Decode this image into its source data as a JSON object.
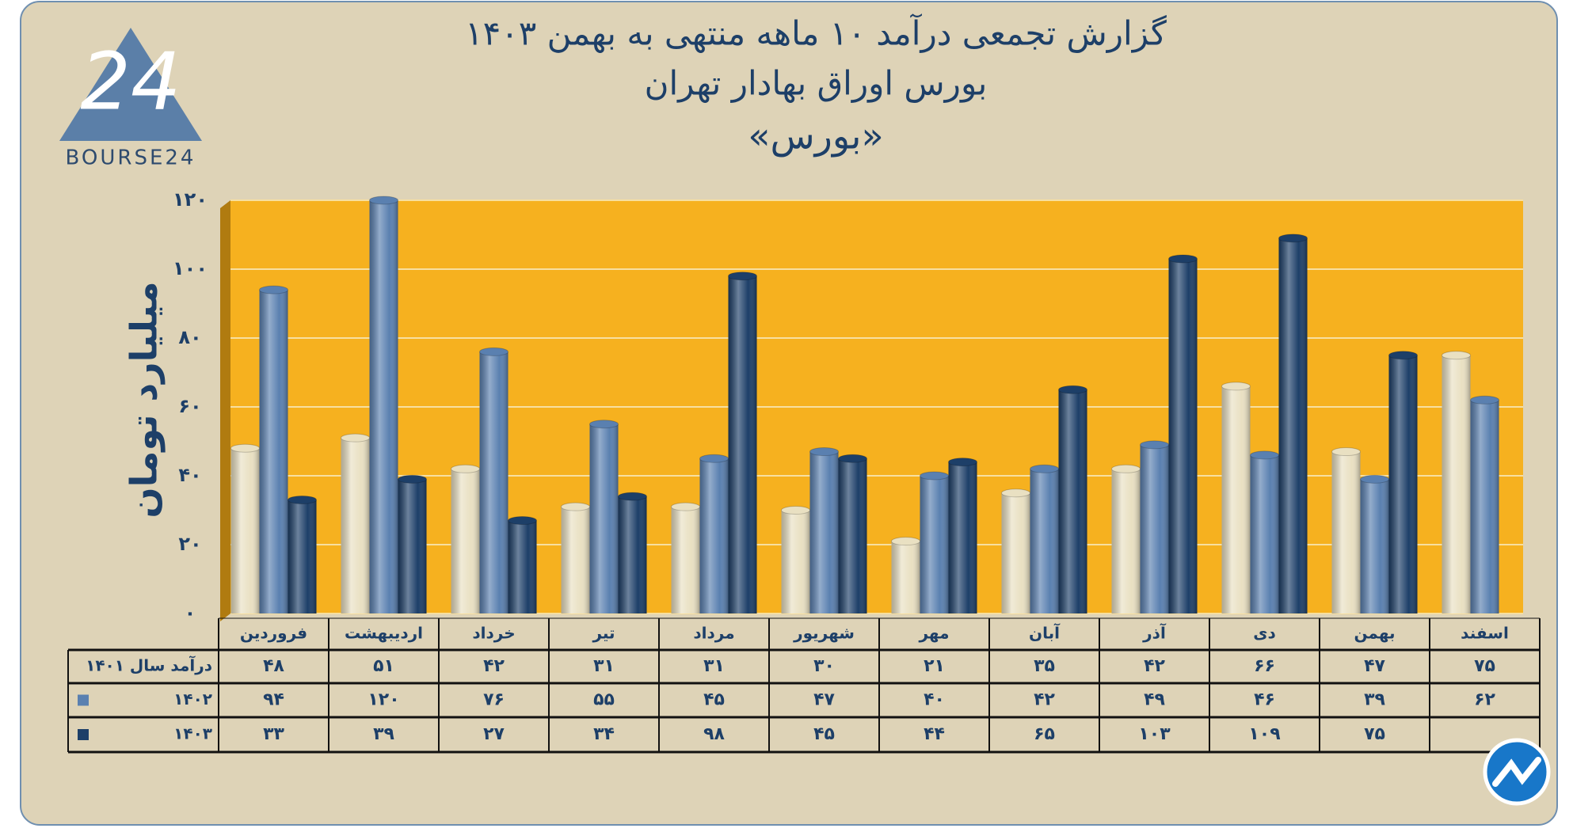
{
  "chart_data": {
    "type": "bar",
    "title": "گزارش تجمعی درآمد ۱۰ ماهه منتهی به بهمن ۱۴۰۳",
    "subtitle": "بورس اوراق بهادار تهران",
    "subtitle2": "«بورس»",
    "logo_text": "BOURSE24",
    "y_label": "میلیارد تومان",
    "categories": [
      "فروردین",
      "اردیبهشت",
      "خرداد",
      "تیر",
      "مرداد",
      "شهریور",
      "مهر",
      "آبان",
      "آذر",
      "دی",
      "بهمن",
      "اسفند"
    ],
    "series": [
      {
        "name": "درآمد  سال ۱۴۰۱",
        "color": "#e9e0c2",
        "values": [
          48,
          51,
          42,
          31,
          31,
          30,
          21,
          35,
          42,
          66,
          47,
          75
        ],
        "value_labels": [
          "۴۸",
          "۵۱",
          "۴۲",
          "۳۱",
          "۳۱",
          "۳۰",
          "۲۱",
          "۳۵",
          "۴۲",
          "۶۶",
          "۴۷",
          "۷۵"
        ]
      },
      {
        "name": "۱۴۰۲",
        "color": "#5a80b0",
        "values": [
          94,
          120,
          76,
          55,
          45,
          47,
          40,
          42,
          49,
          46,
          39,
          62
        ],
        "value_labels": [
          "۹۴",
          "۱۲۰",
          "۷۶",
          "۵۵",
          "۴۵",
          "۴۷",
          "۴۰",
          "۴۲",
          "۴۹",
          "۴۶",
          "۳۹",
          "۶۲"
        ]
      },
      {
        "name": "۱۴۰۳",
        "color": "#1d3f68",
        "values": [
          33,
          39,
          27,
          34,
          98,
          45,
          44,
          65,
          103,
          109,
          75,
          null
        ],
        "value_labels": [
          "۳۳",
          "۳۹",
          "۲۷",
          "۳۴",
          "۹۸",
          "۴۵",
          "۴۴",
          "۶۵",
          "۱۰۳",
          "۱۰۹",
          "۷۵",
          null
        ]
      }
    ],
    "ylim": [
      0,
      120
    ],
    "yticks": [
      {
        "value": 0,
        "label": "۰"
      },
      {
        "value": 20,
        "label": "۲۰"
      },
      {
        "value": 40,
        "label": "۴۰"
      },
      {
        "value": 60,
        "label": "۶۰"
      },
      {
        "value": 80,
        "label": "۸۰"
      },
      {
        "value": 100,
        "label": "۱۰۰"
      },
      {
        "value": 120,
        "label": "۱۲۰"
      }
    ],
    "grid": true
  }
}
